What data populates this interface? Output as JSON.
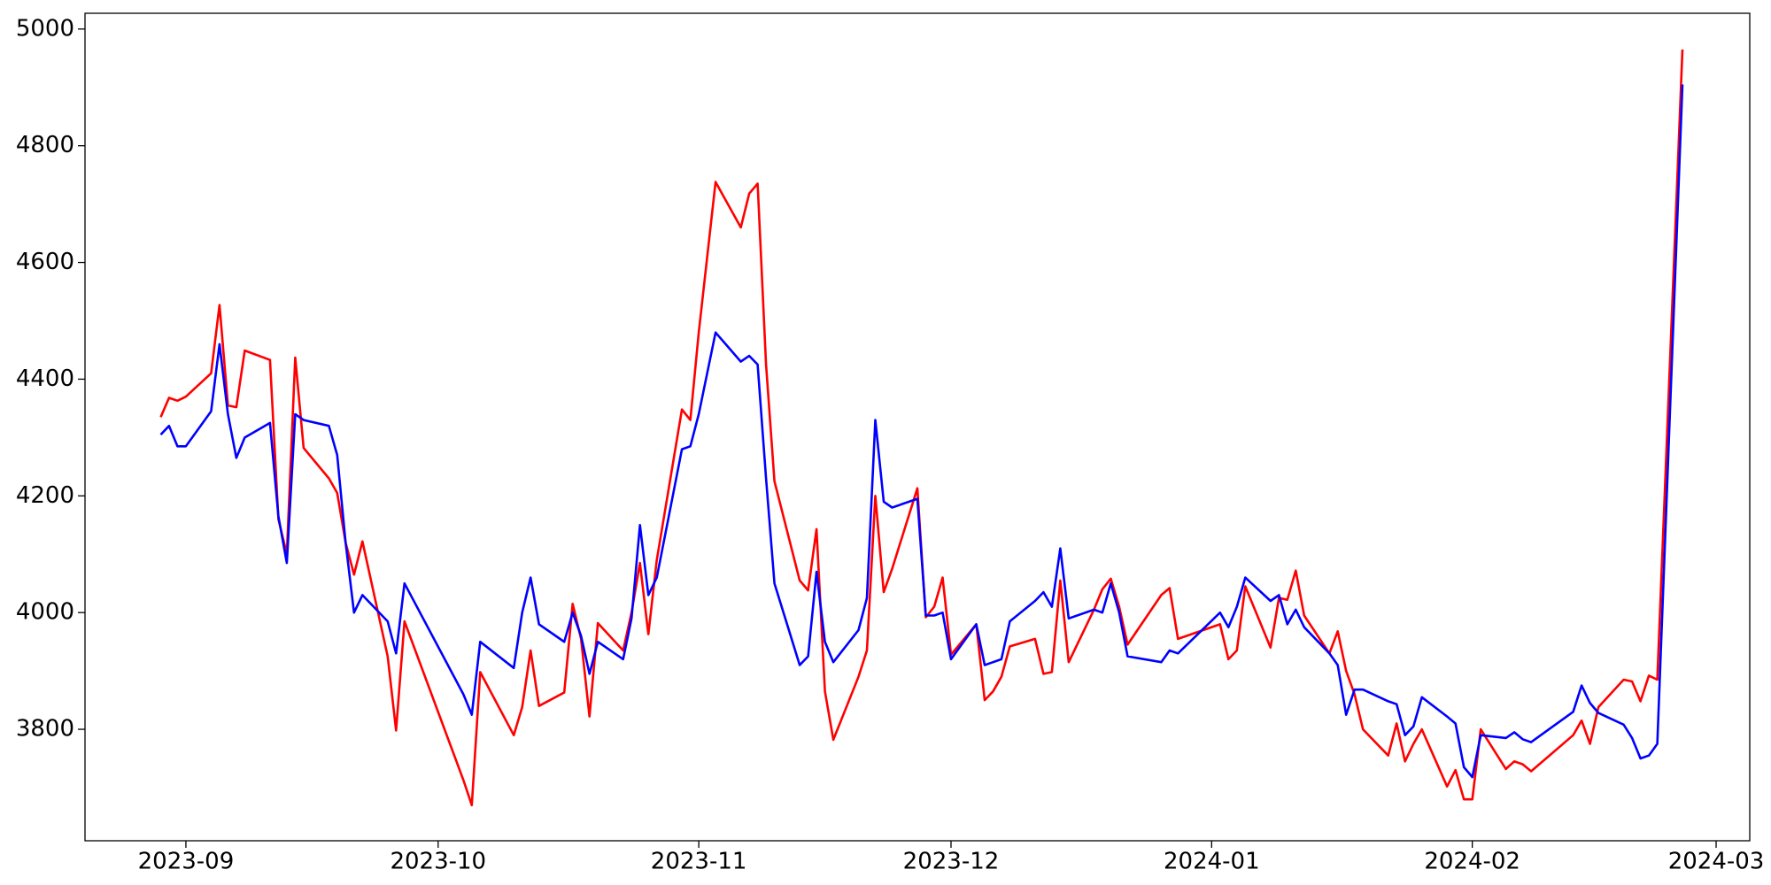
{
  "chart_data": {
    "type": "line",
    "x": [
      "2023-08-29",
      "2023-08-30",
      "2023-08-31",
      "2023-09-01",
      "2023-09-04",
      "2023-09-05",
      "2023-09-06",
      "2023-09-07",
      "2023-09-08",
      "2023-09-11",
      "2023-09-12",
      "2023-09-13",
      "2023-09-14",
      "2023-09-15",
      "2023-09-18",
      "2023-09-19",
      "2023-09-20",
      "2023-09-21",
      "2023-09-22",
      "2023-09-25",
      "2023-09-26",
      "2023-09-27",
      "2023-10-04",
      "2023-10-05",
      "2023-10-06",
      "2023-10-10",
      "2023-10-11",
      "2023-10-12",
      "2023-10-13",
      "2023-10-16",
      "2023-10-17",
      "2023-10-18",
      "2023-10-19",
      "2023-10-20",
      "2023-10-23",
      "2023-10-24",
      "2023-10-25",
      "2023-10-26",
      "2023-10-27",
      "2023-10-30",
      "2023-10-31",
      "2023-11-01",
      "2023-11-03",
      "2023-11-06",
      "2023-11-07",
      "2023-11-08",
      "2023-11-09",
      "2023-11-10",
      "2023-11-13",
      "2023-11-14",
      "2023-11-15",
      "2023-11-16",
      "2023-11-17",
      "2023-11-20",
      "2023-11-21",
      "2023-11-22",
      "2023-11-23",
      "2023-11-24",
      "2023-11-27",
      "2023-11-28",
      "2023-11-29",
      "2023-11-30",
      "2023-12-01",
      "2023-12-04",
      "2023-12-05",
      "2023-12-06",
      "2023-12-07",
      "2023-12-08",
      "2023-12-11",
      "2023-12-12",
      "2023-12-13",
      "2023-12-14",
      "2023-12-15",
      "2023-12-18",
      "2023-12-19",
      "2023-12-20",
      "2023-12-21",
      "2023-12-22",
      "2023-12-26",
      "2023-12-27",
      "2023-12-28",
      "2024-01-02",
      "2024-01-03",
      "2024-01-04",
      "2024-01-05",
      "2024-01-08",
      "2024-01-09",
      "2024-01-10",
      "2024-01-11",
      "2024-01-12",
      "2024-01-15",
      "2024-01-16",
      "2024-01-17",
      "2024-01-18",
      "2024-01-19",
      "2024-01-22",
      "2024-01-23",
      "2024-01-24",
      "2024-01-25",
      "2024-01-26",
      "2024-01-29",
      "2024-01-30",
      "2024-01-31",
      "2024-02-01",
      "2024-02-02",
      "2024-02-05",
      "2024-02-06",
      "2024-02-07",
      "2024-02-08",
      "2024-02-13",
      "2024-02-14",
      "2024-02-15",
      "2024-02-16",
      "2024-02-19",
      "2024-02-20",
      "2024-02-21",
      "2024-02-22",
      "2024-02-23",
      "2024-02-26"
    ],
    "series": [
      {
        "color": "#ff0000",
        "values": [
          4335,
          4368,
          4363,
          4370,
          4410,
          4527,
          4355,
          4352,
          4449,
          4433,
          4160,
          4100,
          4437,
          4282,
          4230,
          4205,
          4120,
          4065,
          4122,
          3925,
          3798,
          3985,
          3713,
          3670,
          3898,
          3790,
          3838,
          3935,
          3840,
          3863,
          4015,
          3955,
          3822,
          3982,
          3935,
          4000,
          4085,
          3963,
          4090,
          4348,
          4330,
          4480,
          4738,
          4660,
          4718,
          4735,
          4425,
          4225,
          4055,
          4038,
          4143,
          3865,
          3782,
          3890,
          3935,
          4200,
          4035,
          4075,
          4213,
          3992,
          4010,
          4060,
          3928,
          3980,
          3850,
          3865,
          3890,
          3942,
          3955,
          3895,
          3898,
          4055,
          3915,
          4005,
          4040,
          4058,
          4010,
          3945,
          4030,
          4042,
          3955,
          3980,
          3920,
          3935,
          4045,
          3940,
          4025,
          4022,
          4072,
          3995,
          3930,
          3968,
          3900,
          3860,
          3800,
          3755,
          3810,
          3745,
          3775,
          3800,
          3702,
          3730,
          3680,
          3680,
          3800,
          3732,
          3745,
          3740,
          3728,
          3790,
          3815,
          3775,
          3838,
          3885,
          3882,
          3848,
          3892,
          3885,
          4965
        ]
      },
      {
        "color": "#0000ff",
        "values": [
          4305,
          4320,
          4285,
          4285,
          4345,
          4460,
          4340,
          4265,
          4300,
          4325,
          4165,
          4085,
          4340,
          4330,
          4320,
          4270,
          4120,
          4000,
          4030,
          3985,
          3930,
          4050,
          3860,
          3825,
          3950,
          3905,
          4000,
          4060,
          3980,
          3950,
          4000,
          3960,
          3895,
          3950,
          3920,
          3990,
          4150,
          4030,
          4060,
          4280,
          4285,
          4340,
          4480,
          4430,
          4440,
          4425,
          4230,
          4050,
          3910,
          3925,
          4070,
          3950,
          3915,
          3970,
          4025,
          4330,
          4190,
          4180,
          4195,
          3995,
          3995,
          4000,
          3920,
          3980,
          3910,
          3915,
          3920,
          3985,
          4020,
          4035,
          4010,
          4110,
          3990,
          4005,
          4000,
          4050,
          4000,
          3925,
          3915,
          3935,
          3930,
          4000,
          3975,
          4010,
          4060,
          4020,
          4030,
          3980,
          4005,
          3975,
          3930,
          3910,
          3825,
          3868,
          3868,
          3848,
          3843,
          3790,
          3805,
          3855,
          3822,
          3810,
          3735,
          3718,
          3790,
          3785,
          3795,
          3783,
          3778,
          3830,
          3875,
          3845,
          3828,
          3808,
          3785,
          3750,
          3755,
          3775,
          4905
        ]
      }
    ],
    "xlim": [
      "2023-08-20",
      "2024-03-05"
    ],
    "xticks": [
      "2023-09",
      "2023-10",
      "2023-11",
      "2023-12",
      "2024-01",
      "2024-02",
      "2024-03"
    ],
    "ylim": [
      3609,
      5027
    ],
    "yticks": [
      3800,
      4000,
      4200,
      4400,
      4600,
      4800,
      5000
    ]
  }
}
